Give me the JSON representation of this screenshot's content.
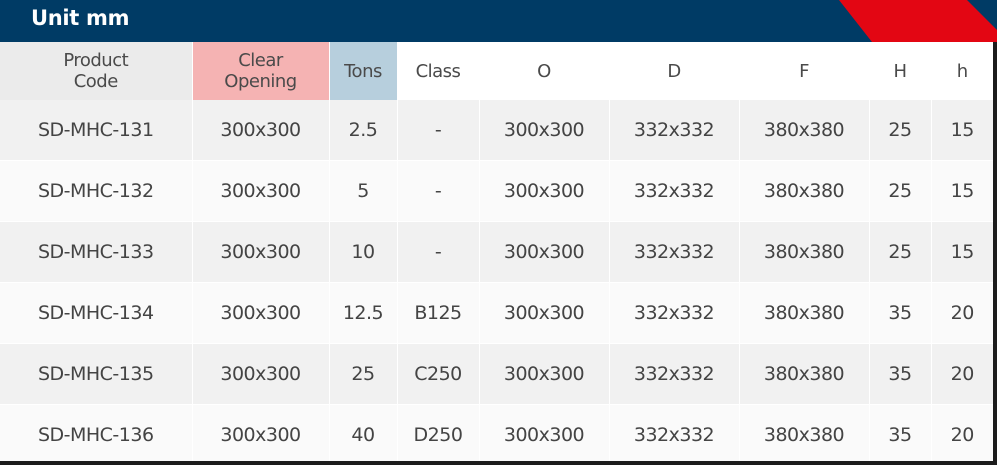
{
  "header": {
    "title": "Unit mm",
    "bar_color": "#003b65",
    "accent_color": "#e30613"
  },
  "table": {
    "columns": [
      "Product\nCode",
      "Clear\nOpening",
      "Tons",
      "Class",
      "O",
      "D",
      "F",
      "H",
      "h"
    ],
    "column_highlights": {
      "Clear Opening": "#f5b3b3",
      "Tons": "#b7cfdd"
    },
    "rows": [
      [
        "SD-MHC-131",
        "300x300",
        "2.5",
        "-",
        "300x300",
        "332x332",
        "380x380",
        "25",
        "15"
      ],
      [
        "SD-MHC-132",
        "300x300",
        "5",
        "-",
        "300x300",
        "332x332",
        "380x380",
        "25",
        "15"
      ],
      [
        "SD-MHC-133",
        "300x300",
        "10",
        "-",
        "300x300",
        "332x332",
        "380x380",
        "25",
        "15"
      ],
      [
        "SD-MHC-134",
        "300x300",
        "12.5",
        "B125",
        "300x300",
        "332x332",
        "380x380",
        "35",
        "20"
      ],
      [
        "SD-MHC-135",
        "300x300",
        "25",
        "C250",
        "300x300",
        "332x332",
        "380x380",
        "35",
        "20"
      ],
      [
        "SD-MHC-136",
        "300x300",
        "40",
        "D250",
        "300x300",
        "332x332",
        "380x380",
        "35",
        "20"
      ]
    ]
  }
}
